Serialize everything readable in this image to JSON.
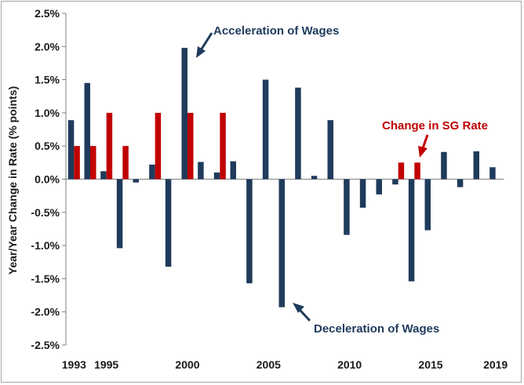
{
  "chart_data": {
    "type": "bar",
    "ylabel": "Year/Year Change in Rate (% points)",
    "ylim": [
      -2.5,
      2.5
    ],
    "yticks": [
      "-2.5%",
      "-2.0%",
      "-1.5%",
      "-1.0%",
      "-0.5%",
      "0.0%",
      "0.5%",
      "1.0%",
      "1.5%",
      "2.0%",
      "2.5%"
    ],
    "x_tick_labels": [
      {
        "year": 1993,
        "label": "1993"
      },
      {
        "year": 1995,
        "label": "1995"
      },
      {
        "year": 2000,
        "label": "2000"
      },
      {
        "year": 2005,
        "label": "2005"
      },
      {
        "year": 2010,
        "label": "2010"
      },
      {
        "year": 2015,
        "label": "2015"
      },
      {
        "year": 2019,
        "label": "2019"
      }
    ],
    "years": [
      1993,
      1994,
      1995,
      1996,
      1997,
      1998,
      1999,
      2000,
      2001,
      2002,
      2003,
      2004,
      2005,
      2006,
      2007,
      2008,
      2009,
      2010,
      2011,
      2012,
      2013,
      2014,
      2015,
      2016,
      2017,
      2018,
      2019
    ],
    "series": [
      {
        "color": "#1f3b5c",
        "values": [
          0.89,
          1.45,
          0.12,
          -1.04,
          -0.05,
          0.22,
          -1.32,
          1.98,
          0.26,
          0.1,
          0.27,
          -1.57,
          1.5,
          -1.93,
          1.38,
          0.05,
          0.89,
          -0.84,
          -0.43,
          -0.23,
          -0.08,
          -1.54,
          -0.77,
          0.41,
          -0.12,
          0.42,
          0.18
        ]
      },
      {
        "color": "#c00000",
        "values": [
          0.5,
          0.5,
          1.0,
          0.5,
          0,
          1.0,
          0,
          1.0,
          0,
          1.0,
          0,
          0,
          0,
          0,
          0,
          0,
          0,
          0,
          0,
          0,
          0.25,
          0.25,
          0,
          0,
          0,
          0,
          0
        ]
      }
    ],
    "annotations": [
      {
        "text": "Acceleration of Wages",
        "color": "#1f3b5c"
      },
      {
        "text": "Change in SG Rate",
        "color": "#c00000"
      },
      {
        "text": "Deceleration of Wages",
        "color": "#1f3b5c"
      }
    ]
  }
}
